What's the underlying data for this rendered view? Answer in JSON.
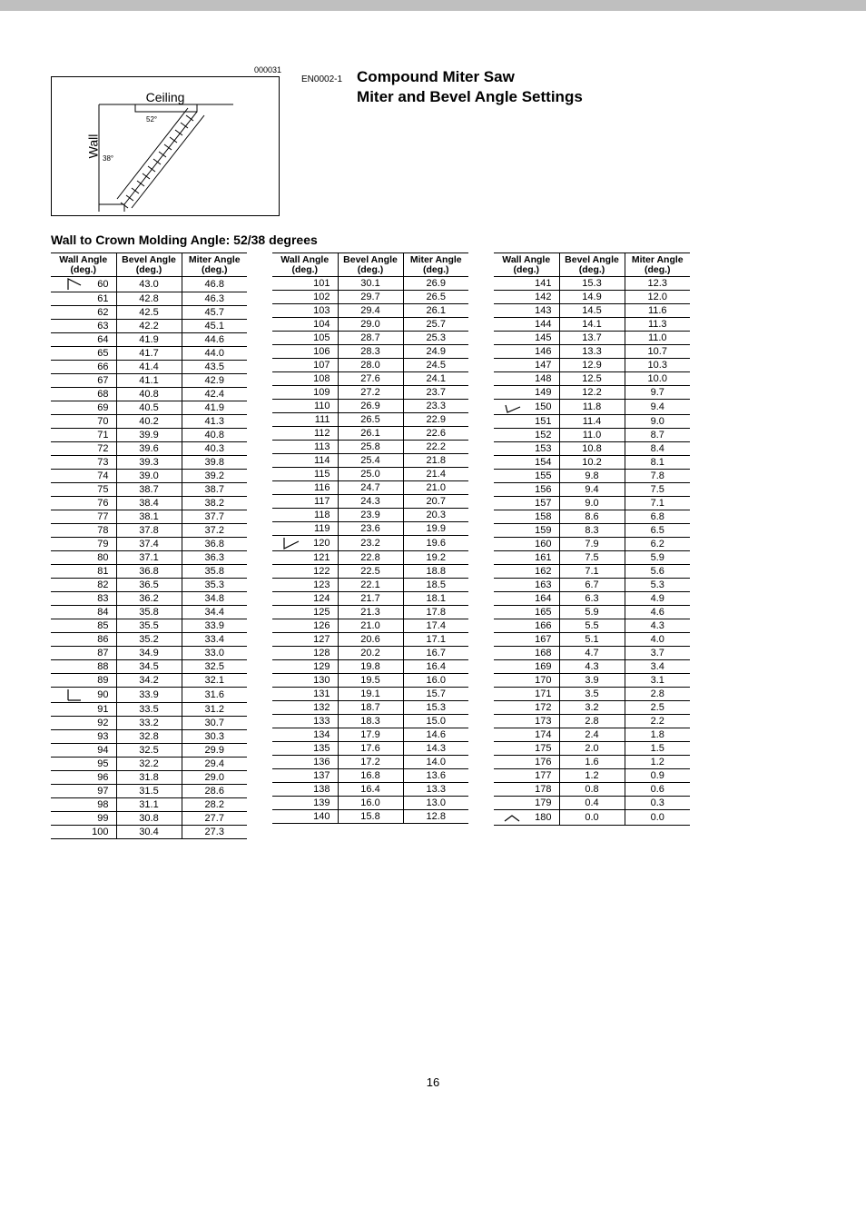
{
  "doc_code": "EN0002-1",
  "doc_title_line1": "Compound Miter Saw",
  "doc_title_line2": "Miter and Bevel Angle Settings",
  "diagram_code": "000031",
  "ceiling_label": "Ceiling",
  "wall_label": "Wall",
  "angle_52": "52°",
  "angle_38": "38°",
  "section_title": "Wall to Crown Molding Angle: 52/38 degrees",
  "page_number": "16",
  "headers": {
    "wall": "Wall Angle",
    "bevel": "Bevel Angle",
    "miter": "Miter Angle",
    "unit": "(deg.)"
  },
  "markers": {
    "60": "m60",
    "90": "m90",
    "120": "m120",
    "150": "m150",
    "180": "m180"
  },
  "table1": [
    [
      60,
      43.0,
      46.8
    ],
    [
      61,
      42.8,
      46.3
    ],
    [
      62,
      42.5,
      45.7
    ],
    [
      63,
      42.2,
      45.1
    ],
    [
      64,
      41.9,
      44.6
    ],
    [
      65,
      41.7,
      44.0
    ],
    [
      66,
      41.4,
      43.5
    ],
    [
      67,
      41.1,
      42.9
    ],
    [
      68,
      40.8,
      42.4
    ],
    [
      69,
      40.5,
      41.9
    ],
    [
      70,
      40.2,
      41.3
    ],
    [
      71,
      39.9,
      40.8
    ],
    [
      72,
      39.6,
      40.3
    ],
    [
      73,
      39.3,
      39.8
    ],
    [
      74,
      39.0,
      39.2
    ],
    [
      75,
      38.7,
      38.7
    ],
    [
      76,
      38.4,
      38.2
    ],
    [
      77,
      38.1,
      37.7
    ],
    [
      78,
      37.8,
      37.2
    ],
    [
      79,
      37.4,
      36.8
    ],
    [
      80,
      37.1,
      36.3
    ],
    [
      81,
      36.8,
      35.8
    ],
    [
      82,
      36.5,
      35.3
    ],
    [
      83,
      36.2,
      34.8
    ],
    [
      84,
      35.8,
      34.4
    ],
    [
      85,
      35.5,
      33.9
    ],
    [
      86,
      35.2,
      33.4
    ],
    [
      87,
      34.9,
      33.0
    ],
    [
      88,
      34.5,
      32.5
    ],
    [
      89,
      34.2,
      32.1
    ],
    [
      90,
      33.9,
      31.6
    ],
    [
      91,
      33.5,
      31.2
    ],
    [
      92,
      33.2,
      30.7
    ],
    [
      93,
      32.8,
      30.3
    ],
    [
      94,
      32.5,
      29.9
    ],
    [
      95,
      32.2,
      29.4
    ],
    [
      96,
      31.8,
      29.0
    ],
    [
      97,
      31.5,
      28.6
    ],
    [
      98,
      31.1,
      28.2
    ],
    [
      99,
      30.8,
      27.7
    ],
    [
      100,
      30.4,
      27.3
    ]
  ],
  "table2": [
    [
      101,
      30.1,
      26.9
    ],
    [
      102,
      29.7,
      26.5
    ],
    [
      103,
      29.4,
      26.1
    ],
    [
      104,
      29.0,
      25.7
    ],
    [
      105,
      28.7,
      25.3
    ],
    [
      106,
      28.3,
      24.9
    ],
    [
      107,
      28.0,
      24.5
    ],
    [
      108,
      27.6,
      24.1
    ],
    [
      109,
      27.2,
      23.7
    ],
    [
      110,
      26.9,
      23.3
    ],
    [
      111,
      26.5,
      22.9
    ],
    [
      112,
      26.1,
      22.6
    ],
    [
      113,
      25.8,
      22.2
    ],
    [
      114,
      25.4,
      21.8
    ],
    [
      115,
      25.0,
      21.4
    ],
    [
      116,
      24.7,
      21.0
    ],
    [
      117,
      24.3,
      20.7
    ],
    [
      118,
      23.9,
      20.3
    ],
    [
      119,
      23.6,
      19.9
    ],
    [
      120,
      23.2,
      19.6
    ],
    [
      121,
      22.8,
      19.2
    ],
    [
      122,
      22.5,
      18.8
    ],
    [
      123,
      22.1,
      18.5
    ],
    [
      124,
      21.7,
      18.1
    ],
    [
      125,
      21.3,
      17.8
    ],
    [
      126,
      21.0,
      17.4
    ],
    [
      127,
      20.6,
      17.1
    ],
    [
      128,
      20.2,
      16.7
    ],
    [
      129,
      19.8,
      16.4
    ],
    [
      130,
      19.5,
      16.0
    ],
    [
      131,
      19.1,
      15.7
    ],
    [
      132,
      18.7,
      15.3
    ],
    [
      133,
      18.3,
      15.0
    ],
    [
      134,
      17.9,
      14.6
    ],
    [
      135,
      17.6,
      14.3
    ],
    [
      136,
      17.2,
      14.0
    ],
    [
      137,
      16.8,
      13.6
    ],
    [
      138,
      16.4,
      13.3
    ],
    [
      139,
      16.0,
      13.0
    ],
    [
      140,
      15.8,
      12.8
    ]
  ],
  "table3": [
    [
      141,
      15.3,
      12.3
    ],
    [
      142,
      14.9,
      12.0
    ],
    [
      143,
      14.5,
      11.6
    ],
    [
      144,
      14.1,
      11.3
    ],
    [
      145,
      13.7,
      11.0
    ],
    [
      146,
      13.3,
      10.7
    ],
    [
      147,
      12.9,
      10.3
    ],
    [
      148,
      12.5,
      10.0
    ],
    [
      149,
      12.2,
      9.7
    ],
    [
      150,
      11.8,
      9.4
    ],
    [
      151,
      11.4,
      9.0
    ],
    [
      152,
      11.0,
      8.7
    ],
    [
      153,
      10.8,
      8.4
    ],
    [
      154,
      10.2,
      8.1
    ],
    [
      155,
      9.8,
      7.8
    ],
    [
      156,
      9.4,
      7.5
    ],
    [
      157,
      9.0,
      7.1
    ],
    [
      158,
      8.6,
      6.8
    ],
    [
      159,
      8.3,
      6.5
    ],
    [
      160,
      7.9,
      6.2
    ],
    [
      161,
      7.5,
      5.9
    ],
    [
      162,
      7.1,
      5.6
    ],
    [
      163,
      6.7,
      5.3
    ],
    [
      164,
      6.3,
      4.9
    ],
    [
      165,
      5.9,
      4.6
    ],
    [
      166,
      5.5,
      4.3
    ],
    [
      167,
      5.1,
      4.0
    ],
    [
      168,
      4.7,
      3.7
    ],
    [
      169,
      4.3,
      3.4
    ],
    [
      170,
      3.9,
      3.1
    ],
    [
      171,
      3.5,
      2.8
    ],
    [
      172,
      3.2,
      2.5
    ],
    [
      173,
      2.8,
      2.2
    ],
    [
      174,
      2.4,
      1.8
    ],
    [
      175,
      2.0,
      1.5
    ],
    [
      176,
      1.6,
      1.2
    ],
    [
      177,
      1.2,
      0.9
    ],
    [
      178,
      0.8,
      0.6
    ],
    [
      179,
      0.4,
      0.3
    ],
    [
      180,
      0.0,
      0.0
    ]
  ]
}
